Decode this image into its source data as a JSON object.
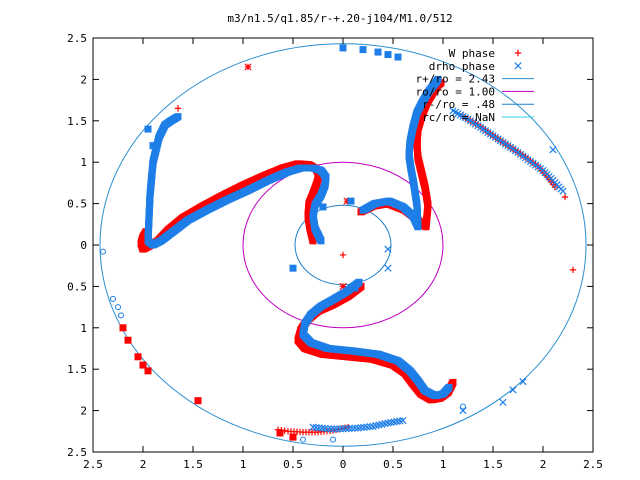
{
  "chart_data": {
    "type": "scatter",
    "title": "m3/n1.5/q1.85/r-+.20-j104/M1.0/512",
    "xlim": [
      -2.5,
      2.5
    ],
    "ylim": [
      -2.5,
      2.5
    ],
    "x_tick_values": [
      -2.5,
      -2,
      -1.5,
      -1,
      -0.5,
      0,
      0.5,
      1,
      1.5,
      2,
      2.5
    ],
    "x_tick_labels": [
      "2.5",
      "2",
      "1.5",
      "1",
      "0.5",
      "0",
      "0.5",
      "1",
      "1.5",
      "2",
      "2.5"
    ],
    "y_tick_values": [
      2.5,
      2,
      1.5,
      1,
      0.5,
      0,
      -0.5,
      -1,
      -1.5,
      -2,
      -2.5
    ],
    "y_tick_labels": [
      "2.5",
      "2",
      "1.5",
      "1",
      "0.5",
      "0",
      "0.5",
      "1",
      "1.5",
      "2",
      "2.5"
    ],
    "grid": false,
    "legend_position": "top-right",
    "series": [
      {
        "name": "W phase",
        "marker": "plus",
        "color": "#ff0000",
        "arms": [
          {
            "x": [
              -0.3,
              -0.33,
              -0.35,
              -0.34,
              -0.3,
              -0.26,
              -0.24,
              -0.27,
              -0.34,
              -0.45,
              -0.6,
              -0.8,
              -1.0,
              -1.2,
              -1.4,
              -1.6,
              -1.75,
              -1.85,
              -1.95,
              -2.0,
              -2.02,
              -2.0,
              -1.97
            ],
            "y": [
              0.05,
              0.2,
              0.35,
              0.5,
              0.62,
              0.75,
              0.85,
              0.92,
              0.97,
              0.98,
              0.93,
              0.83,
              0.72,
              0.6,
              0.47,
              0.33,
              0.18,
              0.05,
              -0.02,
              -0.05,
              0.02,
              0.1,
              0.16
            ]
          },
          {
            "x": [
              0.18,
              0.3,
              0.45,
              0.62,
              0.75,
              0.83,
              0.85,
              0.82,
              0.78,
              0.75,
              0.74,
              0.75,
              0.79,
              0.84,
              0.9,
              0.95,
              0.98
            ],
            "y": [
              0.4,
              0.47,
              0.5,
              0.42,
              0.3,
              0.22,
              0.48,
              0.7,
              0.9,
              1.05,
              1.22,
              1.4,
              1.57,
              1.72,
              1.84,
              1.93,
              1.96
            ],
            "extra_x": [
              1.2,
              1.35,
              1.5,
              1.65,
              1.8,
              1.95,
              2.05,
              2.12
            ],
            "extra_y": [
              1.55,
              1.45,
              1.32,
              1.2,
              1.08,
              0.95,
              0.82,
              0.7
            ]
          },
          {
            "x": [
              0.18,
              0.05,
              -0.1,
              -0.25,
              -0.35,
              -0.42,
              -0.45,
              -0.38,
              -0.2,
              0.05,
              0.3,
              0.5,
              0.62,
              0.7,
              0.78,
              0.88,
              0.97,
              1.05,
              1.1
            ],
            "y": [
              -0.5,
              -0.62,
              -0.72,
              -0.8,
              -0.9,
              -1.02,
              -1.15,
              -1.25,
              -1.32,
              -1.35,
              -1.38,
              -1.45,
              -1.55,
              -1.68,
              -1.8,
              -1.87,
              -1.85,
              -1.78,
              -1.66
            ],
            "extra_x": [
              -0.65,
              -0.55,
              -0.4,
              -0.25,
              -0.1,
              0.05
            ],
            "extra_y": [
              -2.23,
              -2.25,
              -2.26,
              -2.26,
              -2.24,
              -2.2
            ]
          }
        ],
        "outliers": [
          {
            "x": -0.95,
            "y": 2.15,
            "m": "star"
          },
          {
            "x": -1.65,
            "y": 1.65,
            "m": "plus"
          },
          {
            "x": 2.3,
            "y": -0.3,
            "m": "plus"
          },
          {
            "x": 2.22,
            "y": 0.58,
            "m": "plus"
          },
          {
            "x": 0.0,
            "y": -0.12,
            "m": "plus"
          },
          {
            "x": -1.45,
            "y": -1.88,
            "m": "square"
          },
          {
            "x": -0.63,
            "y": -2.27,
            "m": "square"
          },
          {
            "x": -0.5,
            "y": -2.32,
            "m": "square"
          },
          {
            "x": 0.04,
            "y": 0.53,
            "m": "star"
          },
          {
            "x": 0.0,
            "y": -0.5,
            "m": "star"
          },
          {
            "x": -2.15,
            "y": -1.15,
            "m": "square"
          },
          {
            "x": -2.05,
            "y": -1.35,
            "m": "square"
          },
          {
            "x": -2.0,
            "y": -1.45,
            "m": "square"
          },
          {
            "x": -1.95,
            "y": -1.52,
            "m": "square"
          },
          {
            "x": -2.2,
            "y": -1.0,
            "m": "square"
          }
        ]
      },
      {
        "name": "drho phase",
        "marker": "cross",
        "color": "#1e7ee8",
        "arms": [
          {
            "x": [
              -0.22,
              -0.28,
              -0.3,
              -0.28,
              -0.22,
              -0.18,
              -0.17,
              -0.22,
              -0.3,
              -0.42,
              -0.56,
              -0.75,
              -0.95,
              -1.15,
              -1.35,
              -1.55,
              -1.7,
              -1.82,
              -1.9,
              -1.95,
              -1.93,
              -1.9,
              -1.84,
              -1.78,
              -1.72,
              -1.65
            ],
            "y": [
              0.05,
              0.2,
              0.35,
              0.48,
              0.6,
              0.72,
              0.82,
              0.9,
              0.93,
              0.93,
              0.88,
              0.78,
              0.66,
              0.55,
              0.43,
              0.3,
              0.16,
              0.05,
              0.0,
              0.05,
              0.6,
              1.0,
              1.3,
              1.45,
              1.5,
              1.55
            ]
          },
          {
            "x": [
              0.2,
              0.32,
              0.46,
              0.6,
              0.7,
              0.75,
              0.74,
              0.71,
              0.68,
              0.66,
              0.67,
              0.7,
              0.74,
              0.8,
              0.86,
              0.92,
              0.95
            ],
            "y": [
              0.42,
              0.5,
              0.53,
              0.46,
              0.35,
              0.22,
              0.48,
              0.72,
              0.92,
              1.08,
              1.24,
              1.42,
              1.6,
              1.74,
              1.86,
              1.95,
              2.0
            ],
            "extra_x": [
              1.1,
              1.25,
              1.4,
              1.55,
              1.7,
              1.85,
              2.0,
              2.1,
              2.2
            ],
            "extra_y": [
              1.62,
              1.52,
              1.4,
              1.28,
              1.16,
              1.03,
              0.9,
              0.78,
              0.65
            ]
          },
          {
            "x": [
              0.16,
              0.04,
              -0.1,
              -0.22,
              -0.32,
              -0.38,
              -0.4,
              -0.32,
              -0.15,
              0.1,
              0.35,
              0.55,
              0.67,
              0.75,
              0.82,
              0.92,
              1.0,
              1.06
            ],
            "y": [
              -0.45,
              -0.56,
              -0.66,
              -0.74,
              -0.84,
              -0.95,
              -1.08,
              -1.18,
              -1.25,
              -1.28,
              -1.32,
              -1.4,
              -1.52,
              -1.64,
              -1.76,
              -1.82,
              -1.8,
              -1.72
            ],
            "extra_x": [
              -0.3,
              -0.15,
              0.0,
              0.15,
              0.3,
              0.45,
              0.6
            ],
            "extra_y": [
              -2.2,
              -2.22,
              -2.22,
              -2.21,
              -2.19,
              -2.15,
              -2.12
            ]
          }
        ],
        "outliers": [
          {
            "x": -2.4,
            "y": -0.08,
            "m": "circle"
          },
          {
            "x": -2.3,
            "y": -0.65,
            "m": "circle"
          },
          {
            "x": -2.25,
            "y": -0.75,
            "m": "circle"
          },
          {
            "x": -2.22,
            "y": -0.85,
            "m": "circle"
          },
          {
            "x": -1.9,
            "y": 1.2,
            "m": "square"
          },
          {
            "x": -1.95,
            "y": 1.4,
            "m": "square"
          },
          {
            "x": 1.2,
            "y": -2.0,
            "m": "cross"
          },
          {
            "x": 1.6,
            "y": -1.9,
            "m": "cross"
          },
          {
            "x": 1.7,
            "y": -1.75,
            "m": "cross"
          },
          {
            "x": 1.8,
            "y": -1.65,
            "m": "cross"
          },
          {
            "x": 2.1,
            "y": 1.15,
            "m": "cross"
          },
          {
            "x": 0.45,
            "y": -0.28,
            "m": "cross"
          },
          {
            "x": 0.45,
            "y": -0.05,
            "m": "cross"
          },
          {
            "x": 0.0,
            "y": 2.38,
            "m": "square"
          },
          {
            "x": 0.2,
            "y": 2.36,
            "m": "square"
          },
          {
            "x": 0.35,
            "y": 2.33,
            "m": "square"
          },
          {
            "x": 0.45,
            "y": 2.3,
            "m": "square"
          },
          {
            "x": 0.55,
            "y": 2.27,
            "m": "square"
          },
          {
            "x": 0.08,
            "y": 0.53,
            "m": "square"
          },
          {
            "x": -0.2,
            "y": 0.46,
            "m": "square"
          },
          {
            "x": 0.12,
            "y": -0.52,
            "m": "square"
          },
          {
            "x": -0.5,
            "y": -0.28,
            "m": "square"
          },
          {
            "x": -0.1,
            "y": -2.35,
            "m": "circle"
          },
          {
            "x": -0.4,
            "y": -2.35,
            "m": "circle"
          },
          {
            "x": 1.2,
            "y": -1.95,
            "m": "circle"
          }
        ]
      }
    ],
    "circles": [
      {
        "name": "r+/ro = 2.43",
        "radius": 2.43,
        "color": "#2a8fd0"
      },
      {
        "name": "ro/ro = 1.00",
        "radius": 1.0,
        "color": "#c000c0"
      },
      {
        "name": "r-/ro = .48",
        "radius": 0.48,
        "color": "#1e80c8"
      },
      {
        "name": "rc/ro = NaN",
        "radius": null,
        "color": "#2fcfe8"
      }
    ]
  }
}
